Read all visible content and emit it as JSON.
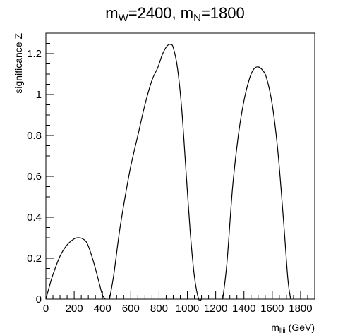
{
  "chart_data": {
    "type": "line",
    "title": {
      "parts": [
        {
          "text": "m",
          "sub": false
        },
        {
          "text": "W",
          "sub": true
        },
        {
          "text": "=2400, m",
          "sub": false
        },
        {
          "text": "N",
          "sub": true
        },
        {
          "text": "=1800",
          "sub": false
        }
      ]
    },
    "xlabel": {
      "main": "m",
      "sub": "lljj",
      "suffix": " (GeV)"
    },
    "ylabel": "significance Z",
    "xlim": [
      0,
      1900
    ],
    "ylim": [
      0,
      1.3
    ],
    "xticks_major": [
      0,
      200,
      400,
      600,
      800,
      1000,
      1200,
      1400,
      1600,
      1800
    ],
    "yticks_major": [
      0,
      0.2,
      0.4,
      0.6,
      0.8,
      1,
      1.2
    ],
    "xtick_labels": [
      "0",
      "200",
      "400",
      "600",
      "800",
      "1000",
      "1200",
      "1400",
      "1600",
      "1800"
    ],
    "ytick_labels": [
      "0",
      "0.2",
      "0.4",
      "0.6",
      "0.8",
      "1",
      "1.2"
    ],
    "grid": false,
    "series": [
      {
        "color": "#000000",
        "x": [
          0,
          20,
          50,
          100,
          150,
          200,
          230,
          260,
          290,
          320,
          350,
          380,
          400,
          420
        ],
        "y": [
          0.0,
          0.05,
          0.12,
          0.21,
          0.265,
          0.295,
          0.3,
          0.295,
          0.275,
          0.22,
          0.15,
          0.07,
          0.02,
          0.0
        ]
      },
      {
        "color": "#000000",
        "x": [
          450,
          480,
          520,
          560,
          600,
          650,
          700,
          750,
          790,
          820,
          840,
          860,
          880,
          900,
          930,
          960,
          990,
          1020,
          1050,
          1080,
          1100
        ],
        "y": [
          0.0,
          0.12,
          0.33,
          0.5,
          0.65,
          0.8,
          0.95,
          1.07,
          1.13,
          1.19,
          1.22,
          1.24,
          1.245,
          1.23,
          1.13,
          0.93,
          0.63,
          0.33,
          0.11,
          0.0,
          0.0
        ]
      },
      {
        "color": "#000000",
        "x": [
          1250,
          1280,
          1320,
          1360,
          1400,
          1440,
          1470,
          1500,
          1530,
          1560,
          1600,
          1640,
          1680,
          1710,
          1730
        ],
        "y": [
          0.0,
          0.18,
          0.55,
          0.8,
          0.97,
          1.08,
          1.125,
          1.135,
          1.12,
          1.08,
          0.95,
          0.72,
          0.38,
          0.1,
          0.0
        ]
      }
    ]
  }
}
